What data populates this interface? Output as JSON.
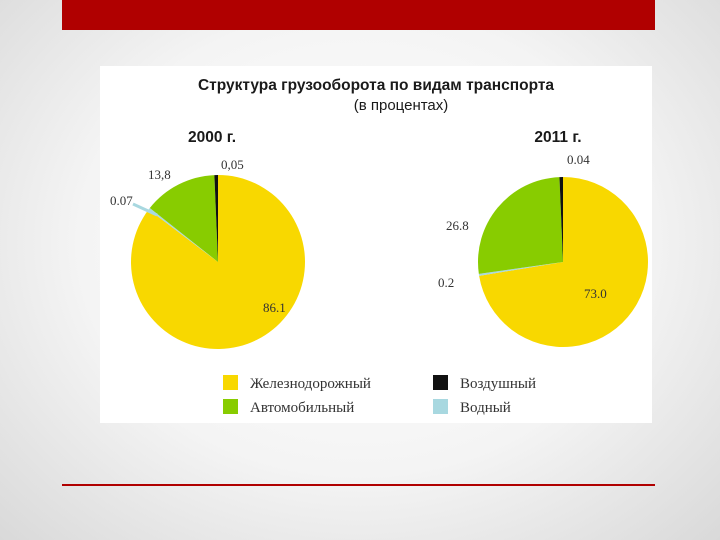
{
  "chart_data": {
    "type": "pie",
    "title": "Структура грузооборота по видам транспорта",
    "subtitle": "(в процентах)",
    "legend": {
      "placement": "bottom",
      "entries": [
        {
          "name": "Железнодорожный",
          "color": "#f8d800"
        },
        {
          "name": "Автомобильный",
          "color": "#88cc00"
        },
        {
          "name": "Воздушный",
          "color": "#111111"
        },
        {
          "name": "Водный",
          "color": "#a8d8e0"
        }
      ]
    },
    "pies": [
      {
        "year_label": "2000 г.",
        "slices": [
          {
            "name": "Железнодорожный",
            "value": 86.1,
            "label": "86.1",
            "color": "#f8d800"
          },
          {
            "name": "Водный",
            "value": 0.07,
            "label": "0.07",
            "color": "#a8d8e0"
          },
          {
            "name": "Автомобильный",
            "value": 13.8,
            "label": "13,8",
            "color": "#88cc00"
          },
          {
            "name": "Воздушный",
            "value": 0.05,
            "label": "0,05",
            "color": "#111111"
          }
        ]
      },
      {
        "year_label": "2011 г.",
        "slices": [
          {
            "name": "Железнодорожный",
            "value": 73.0,
            "label": "73.0",
            "color": "#f8d800"
          },
          {
            "name": "Водный",
            "value": 0.2,
            "label": "0.2",
            "color": "#a8d8e0"
          },
          {
            "name": "Автомобильный",
            "value": 26.8,
            "label": "26.8",
            "color": "#88cc00"
          },
          {
            "name": "Воздушный",
            "value": 0.04,
            "label": "0.04",
            "color": "#111111"
          }
        ]
      }
    ]
  }
}
